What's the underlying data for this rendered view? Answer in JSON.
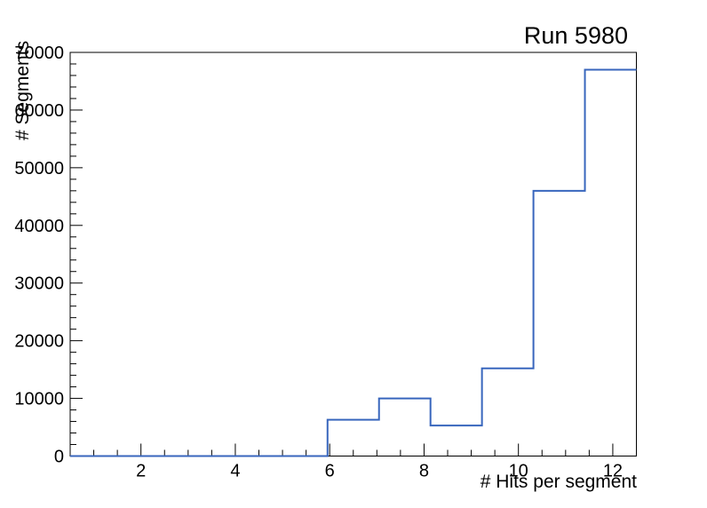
{
  "chart_data": {
    "type": "bar",
    "subtype": "step-histogram",
    "title": "Run 5980",
    "xlabel": "# Hits per segment",
    "ylabel": "# Segments",
    "xlim": [
      0.5,
      12.5
    ],
    "ylim": [
      0,
      70000
    ],
    "bin_edges": [
      0.5,
      1.5909,
      2.6818,
      3.7727,
      4.8636,
      5.9545,
      7.0455,
      8.1364,
      9.2273,
      10.3182,
      11.4091,
      12.5
    ],
    "counts": [
      0,
      0,
      0,
      0,
      0,
      6300,
      10000,
      5300,
      15200,
      46000,
      67000
    ],
    "x_axis": {
      "major_ticks": [
        2,
        4,
        6,
        8,
        10,
        12
      ],
      "major_tick_labels": [
        "2",
        "4",
        "6",
        "8",
        "10",
        "12"
      ],
      "minor_tick_step": 0.5
    },
    "y_axis": {
      "major_ticks": [
        0,
        10000,
        20000,
        30000,
        40000,
        50000,
        60000,
        70000
      ],
      "major_tick_labels": [
        "0",
        "10000",
        "20000",
        "30000",
        "40000",
        "50000",
        "60000",
        "70000"
      ],
      "minor_tick_step": 2000
    },
    "line_color": "#3866bd",
    "frame_color": "#000000",
    "background_color": "#ffffff",
    "grid": false,
    "legend": null
  }
}
